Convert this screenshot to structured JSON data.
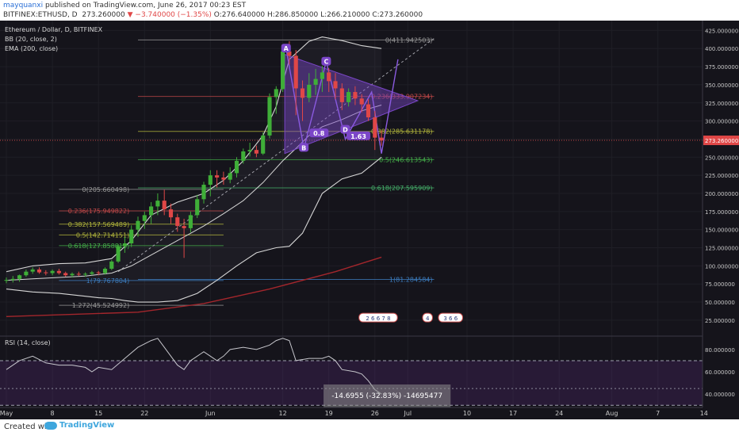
{
  "header": {
    "author": "mayquanxi",
    "published_text": " published on TradingView.com, June 26, 2017 00:23 EST",
    "symbol": "BITFINEX:ETHUSD, D",
    "last": "273.260000",
    "change": "▼ −3.740000 (−1.35%)",
    "ohlc": "O:276.640000 H:286.850000 L:266.210000 C:273.260000"
  },
  "legend": {
    "main": "Ethereum / Dollar, D, BITFINEX",
    "bb": "BB (20, close, 2)",
    "ema": "EMA (200, close)",
    "rsi": "RSI (14, close)"
  },
  "footer": {
    "created_with": "Created with",
    "brand": "TradingView"
  },
  "colors": {
    "background": "#15141b",
    "up_candle": "#3fae38",
    "down_candle": "#e04747",
    "bollinger": "#d6d6d6",
    "ema": "#a3262c",
    "triangle": "#7b46c8",
    "price_line": "#c24848",
    "measure_box": "#8e8e8e"
  },
  "chart_data": {
    "type": "candlestick",
    "price_axis": {
      "ticks": [
        25,
        50,
        75,
        100,
        125,
        150,
        175,
        200,
        225,
        250,
        275,
        300,
        325,
        350,
        375,
        400,
        425
      ],
      "tick_labels": [
        "25.000000",
        "50.000000",
        "75.000000",
        "100.000000",
        "125.000000",
        "150.000000",
        "175.000000",
        "200.000000",
        "225.000000",
        "250.000000",
        "275.000000",
        "300.000000",
        "325.000000",
        "350.000000",
        "375.000000",
        "400.000000",
        "425.000000"
      ],
      "range": [
        3,
        432
      ],
      "last_price": 273.26,
      "last_price_label": "273.260000"
    },
    "time_axis": {
      "labels": [
        "May",
        "8",
        "15",
        "22",
        "Jun",
        "12",
        "19",
        "26",
        "Jul",
        "10",
        "17",
        "24",
        "Aug",
        "7",
        "14"
      ],
      "day_offsets": [
        0,
        7,
        14,
        21,
        31,
        42,
        49,
        56,
        61,
        70,
        77,
        84,
        92,
        99,
        106
      ]
    },
    "candles": [
      {
        "d": 0,
        "o": 79.5,
        "h": 84,
        "l": 76,
        "c": 80.5
      },
      {
        "d": 1,
        "o": 80.5,
        "h": 86,
        "l": 77,
        "c": 82
      },
      {
        "d": 2,
        "o": 82,
        "h": 88,
        "l": 78,
        "c": 87
      },
      {
        "d": 3,
        "o": 87,
        "h": 95,
        "l": 85,
        "c": 92
      },
      {
        "d": 4,
        "o": 92,
        "h": 98,
        "l": 89,
        "c": 95
      },
      {
        "d": 5,
        "o": 95,
        "h": 98,
        "l": 89,
        "c": 91
      },
      {
        "d": 6,
        "o": 91,
        "h": 94,
        "l": 87,
        "c": 90
      },
      {
        "d": 7,
        "o": 90,
        "h": 95,
        "l": 87,
        "c": 93
      },
      {
        "d": 8,
        "o": 93,
        "h": 96,
        "l": 88,
        "c": 90
      },
      {
        "d": 9,
        "o": 90,
        "h": 92,
        "l": 85,
        "c": 87
      },
      {
        "d": 10,
        "o": 87,
        "h": 91,
        "l": 84,
        "c": 89
      },
      {
        "d": 11,
        "o": 89,
        "h": 92,
        "l": 86,
        "c": 88
      },
      {
        "d": 12,
        "o": 88,
        "h": 91,
        "l": 85,
        "c": 89
      },
      {
        "d": 13,
        "o": 89,
        "h": 93,
        "l": 87,
        "c": 91
      },
      {
        "d": 14,
        "o": 91,
        "h": 93,
        "l": 87,
        "c": 90
      },
      {
        "d": 15,
        "o": 90,
        "h": 98,
        "l": 88,
        "c": 96
      },
      {
        "d": 16,
        "o": 96,
        "h": 108,
        "l": 94,
        "c": 106
      },
      {
        "d": 17,
        "o": 106,
        "h": 130,
        "l": 104,
        "c": 127
      },
      {
        "d": 18,
        "o": 127,
        "h": 140,
        "l": 118,
        "c": 131
      },
      {
        "d": 19,
        "o": 131,
        "h": 156,
        "l": 126,
        "c": 150
      },
      {
        "d": 20,
        "o": 150,
        "h": 168,
        "l": 140,
        "c": 162
      },
      {
        "d": 21,
        "o": 162,
        "h": 175,
        "l": 151,
        "c": 170
      },
      {
        "d": 22,
        "o": 170,
        "h": 188,
        "l": 158,
        "c": 182
      },
      {
        "d": 23,
        "o": 182,
        "h": 200,
        "l": 170,
        "c": 190
      },
      {
        "d": 24,
        "o": 190,
        "h": 205,
        "l": 170,
        "c": 178
      },
      {
        "d": 25,
        "o": 178,
        "h": 186,
        "l": 158,
        "c": 167
      },
      {
        "d": 26,
        "o": 167,
        "h": 172,
        "l": 147,
        "c": 155
      },
      {
        "d": 27,
        "o": 155,
        "h": 165,
        "l": 111,
        "c": 152
      },
      {
        "d": 28,
        "o": 152,
        "h": 175,
        "l": 146,
        "c": 170
      },
      {
        "d": 29,
        "o": 170,
        "h": 198,
        "l": 166,
        "c": 192
      },
      {
        "d": 30,
        "o": 192,
        "h": 216,
        "l": 186,
        "c": 212
      },
      {
        "d": 31,
        "o": 212,
        "h": 232,
        "l": 196,
        "c": 225
      },
      {
        "d": 32,
        "o": 225,
        "h": 232,
        "l": 208,
        "c": 222
      },
      {
        "d": 33,
        "o": 222,
        "h": 230,
        "l": 212,
        "c": 219
      },
      {
        "d": 34,
        "o": 219,
        "h": 236,
        "l": 214,
        "c": 228
      },
      {
        "d": 35,
        "o": 228,
        "h": 250,
        "l": 222,
        "c": 245
      },
      {
        "d": 36,
        "o": 245,
        "h": 262,
        "l": 241,
        "c": 258
      },
      {
        "d": 37,
        "o": 258,
        "h": 270,
        "l": 251,
        "c": 260
      },
      {
        "d": 38,
        "o": 260,
        "h": 266,
        "l": 250,
        "c": 255
      },
      {
        "d": 39,
        "o": 255,
        "h": 284,
        "l": 253,
        "c": 280
      },
      {
        "d": 40,
        "o": 280,
        "h": 338,
        "l": 276,
        "c": 333
      },
      {
        "d": 41,
        "o": 333,
        "h": 348,
        "l": 310,
        "c": 344
      },
      {
        "d": 42,
        "o": 344,
        "h": 400,
        "l": 340,
        "c": 396
      },
      {
        "d": 43,
        "o": 396,
        "h": 410,
        "l": 378,
        "c": 390
      },
      {
        "d": 44,
        "o": 390,
        "h": 398,
        "l": 308,
        "c": 345
      },
      {
        "d": 45,
        "o": 345,
        "h": 356,
        "l": 300,
        "c": 332
      },
      {
        "d": 46,
        "o": 332,
        "h": 366,
        "l": 326,
        "c": 350
      },
      {
        "d": 47,
        "o": 350,
        "h": 372,
        "l": 336,
        "c": 358
      },
      {
        "d": 48,
        "o": 358,
        "h": 376,
        "l": 340,
        "c": 367
      },
      {
        "d": 49,
        "o": 367,
        "h": 373,
        "l": 340,
        "c": 355
      },
      {
        "d": 50,
        "o": 355,
        "h": 366,
        "l": 330,
        "c": 345
      },
      {
        "d": 51,
        "o": 345,
        "h": 352,
        "l": 315,
        "c": 326
      },
      {
        "d": 52,
        "o": 326,
        "h": 345,
        "l": 320,
        "c": 340
      },
      {
        "d": 53,
        "o": 340,
        "h": 348,
        "l": 322,
        "c": 331
      },
      {
        "d": 54,
        "o": 331,
        "h": 337,
        "l": 312,
        "c": 323
      },
      {
        "d": 55,
        "o": 323,
        "h": 330,
        "l": 300,
        "c": 305
      },
      {
        "d": 56,
        "o": 305,
        "h": 314,
        "l": 260,
        "c": 277
      },
      {
        "d": 57,
        "o": 277,
        "h": 287,
        "l": 266,
        "c": 273
      }
    ],
    "bollinger_upper": [
      [
        0,
        92
      ],
      [
        4,
        100
      ],
      [
        8,
        103
      ],
      [
        12,
        104
      ],
      [
        16,
        110
      ],
      [
        19,
        135
      ],
      [
        22,
        170
      ],
      [
        26,
        188
      ],
      [
        30,
        200
      ],
      [
        33,
        218
      ],
      [
        36,
        245
      ],
      [
        39,
        280
      ],
      [
        41,
        320
      ],
      [
        43,
        385
      ],
      [
        46,
        410
      ],
      [
        48,
        416
      ],
      [
        51,
        411
      ],
      [
        54,
        404
      ],
      [
        57,
        400
      ]
    ],
    "bollinger_middle": [
      [
        0,
        80
      ],
      [
        4,
        82
      ],
      [
        8,
        84
      ],
      [
        12,
        86
      ],
      [
        16,
        90
      ],
      [
        19,
        100
      ],
      [
        22,
        115
      ],
      [
        26,
        135
      ],
      [
        30,
        155
      ],
      [
        33,
        172
      ],
      [
        36,
        190
      ],
      [
        39,
        215
      ],
      [
        42,
        245
      ],
      [
        44,
        262
      ],
      [
        46,
        280
      ],
      [
        48,
        292
      ],
      [
        51,
        302
      ],
      [
        54,
        314
      ],
      [
        57,
        322
      ]
    ],
    "bollinger_lower": [
      [
        0,
        68
      ],
      [
        4,
        64
      ],
      [
        8,
        62
      ],
      [
        12,
        58
      ],
      [
        14,
        56
      ],
      [
        16,
        55
      ],
      [
        18,
        52
      ],
      [
        20,
        50
      ],
      [
        23,
        50
      ],
      [
        26,
        52
      ],
      [
        29,
        62
      ],
      [
        32,
        80
      ],
      [
        35,
        100
      ],
      [
        38,
        118
      ],
      [
        41,
        125
      ],
      [
        43,
        127
      ],
      [
        45,
        145
      ],
      [
        48,
        200
      ],
      [
        51,
        220
      ],
      [
        54,
        228
      ],
      [
        57,
        250
      ]
    ],
    "ema200": [
      [
        0,
        30
      ],
      [
        10,
        33
      ],
      [
        20,
        36
      ],
      [
        30,
        48
      ],
      [
        40,
        68
      ],
      [
        50,
        92
      ],
      [
        57,
        112
      ]
    ],
    "fibonacci_upper": [
      {
        "label": "0(411.942503)",
        "value": 411.942503
      },
      {
        "label": "0.236(333.907234)",
        "value": 333.907234
      },
      {
        "label": "0.382(285.631178)",
        "value": 285.631178
      },
      {
        "label": "0.5(246.613543)",
        "value": 246.613543
      },
      {
        "label": "0.618(207.595909)",
        "value": 207.595909
      },
      {
        "label": "1(81.284584)",
        "value": 81.284584
      }
    ],
    "fibonacci_lower": [
      {
        "label": "0(205.660498)",
        "value": 205.660498
      },
      {
        "label": "0.236(175.949822)",
        "value": 175.949822
      },
      {
        "label": "0.382(157.569489)",
        "value": 157.569489
      },
      {
        "label": "0.5(142.714151)",
        "value": 142.714151
      },
      {
        "label": "0.618(127.858813)",
        "value": 127.858813
      },
      {
        "label": "1(79.767804)",
        "value": 79.767804
      },
      {
        "label": "1.272(45.524992)",
        "value": 45.524992
      }
    ],
    "pattern_points": [
      {
        "label": "A",
        "d": 42.5,
        "v": 400
      },
      {
        "label": "B",
        "d": 45.2,
        "v": 263
      },
      {
        "label": "C",
        "d": 48.6,
        "v": 382
      },
      {
        "label": "D",
        "d": 51.5,
        "v": 288
      },
      {
        "label": "0.8",
        "d": 47.5,
        "v": 283
      },
      {
        "label": "1.63",
        "d": 53.5,
        "v": 279
      }
    ],
    "triangle": [
      [
        42.3,
        392
      ],
      [
        62.5,
        328
      ],
      [
        42.3,
        255
      ]
    ],
    "harmonic_path": [
      [
        42.5,
        400
      ],
      [
        45.2,
        262
      ],
      [
        48.6,
        382
      ],
      [
        51.5,
        275
      ],
      [
        55.5,
        340
      ],
      [
        57,
        255
      ],
      [
        59.5,
        385
      ]
    ],
    "events": [
      {
        "text": "2 6 6 7 8",
        "d": 56.5,
        "v": 28
      },
      {
        "text": "4",
        "d": 64,
        "v": 28
      },
      {
        "text": "3 6 6",
        "d": 67.5,
        "v": 28
      }
    ],
    "rsi": {
      "axis_ticks": [
        40,
        60,
        80
      ],
      "tick_labels": [
        "40.000000",
        "60.000000",
        "80.000000"
      ],
      "overbought": 70,
      "oversold": 30,
      "range": [
        28,
        92
      ],
      "values": [
        [
          0,
          62
        ],
        [
          2,
          70
        ],
        [
          4,
          74
        ],
        [
          6,
          68
        ],
        [
          8,
          66
        ],
        [
          10,
          66
        ],
        [
          12,
          64
        ],
        [
          13,
          60
        ],
        [
          14,
          64
        ],
        [
          16,
          62
        ],
        [
          18,
          72
        ],
        [
          20,
          82
        ],
        [
          22,
          88
        ],
        [
          23,
          90
        ],
        [
          24,
          82
        ],
        [
          25,
          74
        ],
        [
          26,
          66
        ],
        [
          27,
          62
        ],
        [
          28,
          70
        ],
        [
          30,
          78
        ],
        [
          31,
          74
        ],
        [
          32,
          70
        ],
        [
          33,
          74
        ],
        [
          34,
          80
        ],
        [
          36,
          82
        ],
        [
          38,
          80
        ],
        [
          40,
          84
        ],
        [
          41,
          88
        ],
        [
          42,
          90
        ],
        [
          43,
          88
        ],
        [
          44,
          70
        ],
        [
          46,
          72
        ],
        [
          48,
          72
        ],
        [
          49,
          74
        ],
        [
          50,
          70
        ],
        [
          51,
          62
        ],
        [
          53,
          60
        ],
        [
          54,
          58
        ],
        [
          55,
          52
        ],
        [
          56,
          44
        ],
        [
          57,
          40
        ]
      ],
      "measure_label": "-14.6955 (-32.83%) -14695477"
    }
  }
}
